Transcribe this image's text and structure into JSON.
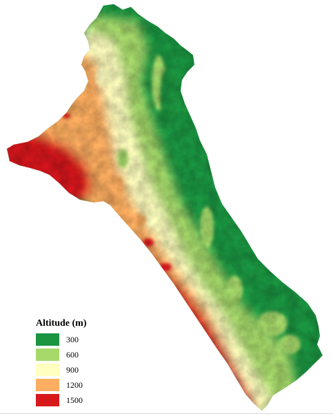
{
  "legend": {
    "title": "Altitude (m)",
    "items": [
      {
        "label": "300",
        "color": "#1a9641"
      },
      {
        "label": "600",
        "color": "#a6d96a"
      },
      {
        "label": "900",
        "color": "#ffffbf"
      },
      {
        "label": "1200",
        "color": "#fdae61"
      },
      {
        "label": "1500",
        "color": "#d7191c"
      }
    ]
  },
  "colors": {
    "low": "#1a9641",
    "mid_low": "#a6d96a",
    "mid": "#ffffbf",
    "mid_high": "#fdae61",
    "high": "#d7191c"
  }
}
